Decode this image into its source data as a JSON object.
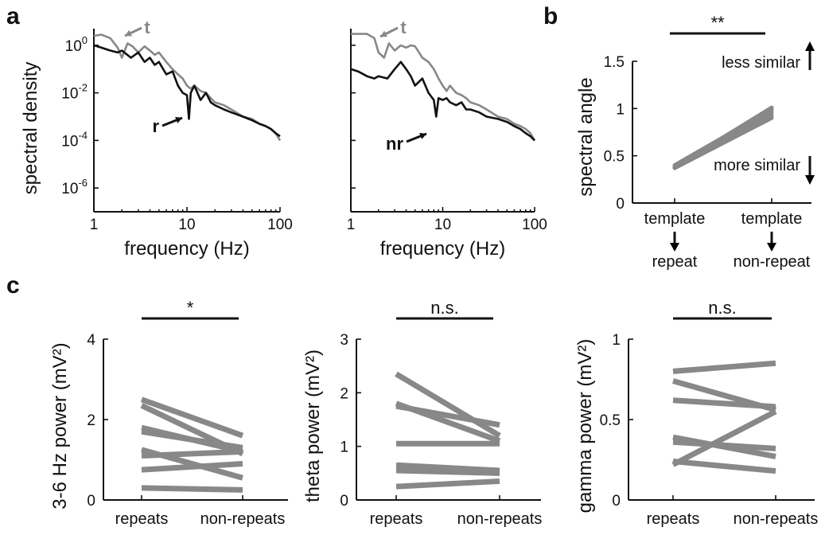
{
  "chart_data": [
    {
      "panel": "a",
      "type": "line",
      "xlabel": "frequency (Hz)",
      "ylabel": "spectral density",
      "xscale": "log",
      "yscale": "log",
      "xlim": [
        1,
        100
      ],
      "ylim": [
        1e-07,
        5
      ],
      "xticks": [
        "1",
        "10",
        "100"
      ],
      "yticks": [
        {
          "base": "10",
          "exp": "0"
        },
        {
          "base": "10",
          "exp": "-2"
        },
        {
          "base": "10",
          "exp": "-4"
        },
        {
          "base": "10",
          "exp": "-6"
        }
      ],
      "annotations": [
        {
          "text": "t",
          "color": "#888888"
        },
        {
          "text": "r",
          "color": "#111111"
        }
      ],
      "series": [
        {
          "color": "#888888",
          "x": [
            1,
            1.2,
            1.5,
            1.8,
            2.0,
            2.3,
            2.6,
            3.0,
            3.5,
            4.0,
            4.5,
            5.0,
            6.0,
            7.0,
            8.0,
            9.0,
            10,
            11,
            12,
            14,
            16,
            18,
            20,
            25,
            30,
            40,
            50,
            60,
            70,
            80,
            90,
            100
          ],
          "y": [
            2.5,
            2.8,
            2.0,
            0.8,
            0.3,
            1.2,
            0.9,
            0.5,
            0.9,
            0.6,
            0.4,
            0.5,
            0.2,
            0.1,
            0.06,
            0.04,
            0.02,
            0.015,
            0.02,
            0.012,
            0.01,
            0.006,
            0.004,
            0.003,
            0.002,
            0.001,
            0.0008,
            0.0005,
            0.0004,
            0.0003,
            0.0002,
            0.0001
          ]
        },
        {
          "color": "#111111",
          "x": [
            1,
            1.2,
            1.5,
            1.8,
            2.0,
            2.5,
            3.0,
            3.5,
            4.0,
            4.5,
            5.0,
            6.0,
            7.0,
            8.0,
            9.0,
            10,
            10.5,
            11,
            12,
            14,
            16,
            18,
            20,
            25,
            30,
            40,
            50,
            60,
            70,
            80,
            90,
            100
          ],
          "y": [
            1.0,
            0.8,
            0.6,
            0.5,
            0.6,
            0.3,
            0.5,
            0.2,
            0.3,
            0.15,
            0.2,
            0.06,
            0.08,
            0.02,
            0.01,
            0.008,
            0.0008,
            0.01,
            0.02,
            0.005,
            0.01,
            0.004,
            0.003,
            0.002,
            0.0015,
            0.001,
            0.0007,
            0.0005,
            0.0004,
            0.0003,
            0.0002,
            0.00015
          ]
        }
      ]
    },
    {
      "panel": "a",
      "type": "line",
      "xlabel": "frequency (Hz)",
      "ylabel": "",
      "xscale": "log",
      "yscale": "log",
      "xlim": [
        1,
        100
      ],
      "ylim": [
        1e-07,
        5
      ],
      "xticks": [
        "1",
        "10",
        "100"
      ],
      "annotations": [
        {
          "text": "t",
          "color": "#888888"
        },
        {
          "text": "nr",
          "color": "#111111"
        }
      ],
      "series": [
        {
          "color": "#888888",
          "x": [
            1,
            1.2,
            1.5,
            1.8,
            2.0,
            2.3,
            2.6,
            3.0,
            3.5,
            4.0,
            4.5,
            5.0,
            6.0,
            7.0,
            8.0,
            9.0,
            10,
            11,
            12,
            14,
            16,
            18,
            20,
            25,
            30,
            40,
            50,
            60,
            70,
            80,
            90,
            100
          ],
          "y": [
            3.0,
            3.0,
            3.0,
            2.0,
            0.5,
            0.3,
            1.2,
            0.6,
            1.0,
            0.8,
            1.0,
            0.9,
            0.3,
            0.2,
            0.1,
            0.04,
            0.02,
            0.012,
            0.02,
            0.01,
            0.008,
            0.006,
            0.004,
            0.003,
            0.002,
            0.001,
            0.0008,
            0.0005,
            0.0004,
            0.0003,
            0.0002,
            0.0001
          ]
        },
        {
          "color": "#111111",
          "x": [
            1,
            1.2,
            1.5,
            1.8,
            2.0,
            2.5,
            3.0,
            3.5,
            4.0,
            4.5,
            5.0,
            6.0,
            7.0,
            8.0,
            8.5,
            9.0,
            10,
            11,
            12,
            14,
            16,
            18,
            20,
            25,
            30,
            40,
            50,
            60,
            70,
            80,
            90,
            100
          ],
          "y": [
            0.1,
            0.08,
            0.05,
            0.04,
            0.05,
            0.04,
            0.1,
            0.2,
            0.1,
            0.05,
            0.02,
            0.04,
            0.01,
            0.005,
            0.001,
            0.006,
            0.005,
            0.006,
            0.004,
            0.003,
            0.004,
            0.002,
            0.002,
            0.0015,
            0.001,
            0.0008,
            0.0006,
            0.0004,
            0.0003,
            0.0002,
            0.00015,
            0.0001
          ]
        }
      ]
    },
    {
      "panel": "b",
      "type": "line",
      "ylabel": "spectral angle",
      "ylim": [
        0,
        1.5
      ],
      "yticks": [
        "0",
        "0.5",
        "1",
        "1.5"
      ],
      "categories": [
        {
          "top": "template",
          "bottom": "repeat"
        },
        {
          "top": "template",
          "bottom": "non-repeat"
        }
      ],
      "significance": "**",
      "annotations": [
        "less similar",
        "more similar"
      ],
      "pairs": [
        [
          0.37,
          0.9
        ],
        [
          0.38,
          0.93
        ],
        [
          0.39,
          0.96
        ],
        [
          0.4,
          0.99
        ],
        [
          0.38,
          1.01
        ]
      ]
    },
    {
      "panel": "c",
      "type": "line",
      "ylabel": "3-6 Hz power (mV²)",
      "ylim": [
        0,
        4
      ],
      "yticks": [
        "0",
        "2",
        "4"
      ],
      "categories": [
        "repeats",
        "non-repeats"
      ],
      "significance": "*",
      "pairs": [
        [
          2.5,
          1.6
        ],
        [
          2.35,
          1.15
        ],
        [
          1.8,
          1.2
        ],
        [
          1.7,
          1.3
        ],
        [
          1.25,
          0.55
        ],
        [
          1.1,
          1.2
        ],
        [
          0.75,
          0.9
        ],
        [
          0.3,
          0.25
        ]
      ]
    },
    {
      "panel": "c",
      "type": "line",
      "ylabel": "theta power (mV²)",
      "ylim": [
        0,
        3
      ],
      "yticks": [
        "0",
        "1",
        "2",
        "3"
      ],
      "categories": [
        "repeats",
        "non-repeats"
      ],
      "significance": "n.s.",
      "pairs": [
        [
          2.35,
          1.2
        ],
        [
          1.8,
          1.1
        ],
        [
          1.75,
          1.4
        ],
        [
          1.05,
          1.05
        ],
        [
          0.65,
          0.55
        ],
        [
          0.55,
          0.5
        ],
        [
          0.25,
          0.35
        ]
      ]
    },
    {
      "panel": "c",
      "type": "line",
      "ylabel": "gamma power (mV²)",
      "ylim": [
        0,
        1
      ],
      "yticks": [
        "0",
        "0.5",
        "1"
      ],
      "categories": [
        "repeats",
        "non-repeats"
      ],
      "significance": "n.s.",
      "pairs": [
        [
          0.8,
          0.85
        ],
        [
          0.74,
          0.56
        ],
        [
          0.62,
          0.58
        ],
        [
          0.39,
          0.27
        ],
        [
          0.36,
          0.32
        ],
        [
          0.24,
          0.18
        ],
        [
          0.22,
          0.55
        ]
      ]
    }
  ],
  "panel_labels": [
    "a",
    "b",
    "c"
  ],
  "colors": {
    "gray": "#888888",
    "black": "#111111"
  }
}
